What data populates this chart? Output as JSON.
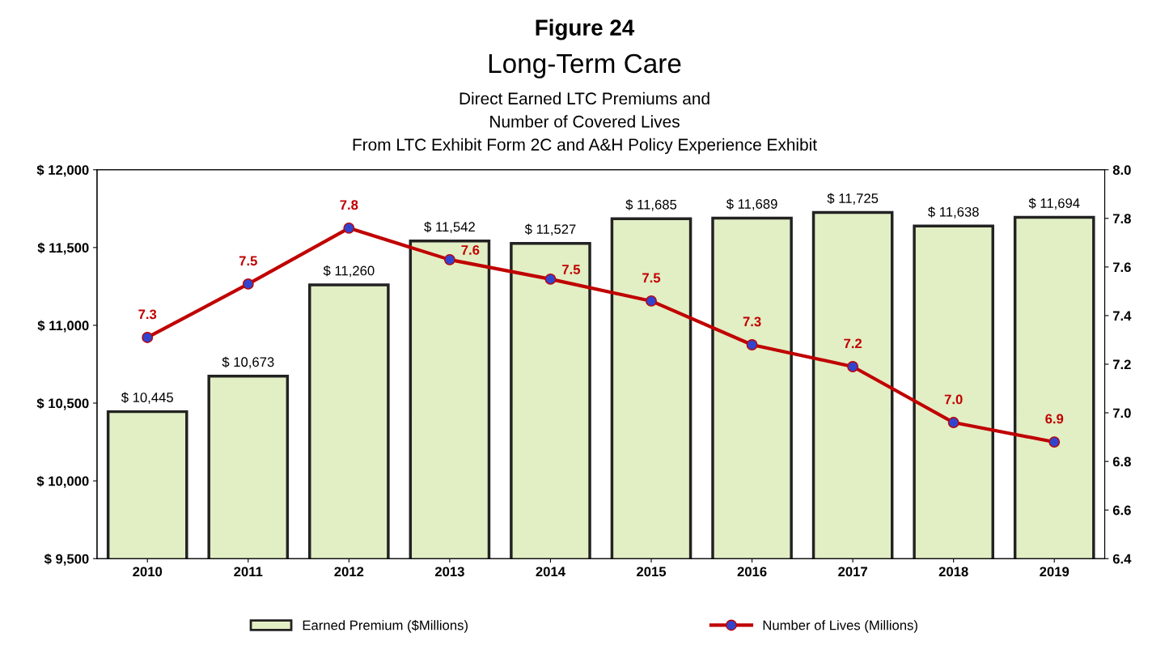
{
  "chart_data": {
    "type": "bar",
    "title": "Figure 24",
    "subtitle": "Long-Term Care\nDirect Earned LTC Premiums and\nNumber of Covered Lives\nFrom LTC Exhibit Form 2C and A&H Policy Experience Exhibit",
    "categories": [
      "2010",
      "2011",
      "2012",
      "2013",
      "2014",
      "2015",
      "2016",
      "2017",
      "2018",
      "2019"
    ],
    "series": [
      {
        "name": "Earned Premium ($Millions)",
        "color": "#e2eec4",
        "values": [
          10445,
          10673,
          11260,
          11542,
          11527,
          11685,
          11689,
          11725,
          11638,
          11694
        ],
        "value_labels": [
          "$ 10,445",
          "$ 10,673",
          "$ 11,260",
          "$ 11,542",
          "$ 11,527",
          "$ 11,685",
          "$ 11,689",
          "$ 11,725",
          "$ 11,638",
          "$ 11,694"
        ]
      },
      {
        "name": "Number of Lives (Millions)",
        "type": "line",
        "axis": "y2",
        "color": "#c00000",
        "values": [
          7.31,
          7.53,
          7.76,
          7.63,
          7.55,
          7.46,
          7.28,
          7.19,
          6.96,
          6.88
        ],
        "value_labels": [
          "7.3",
          "7.5",
          "7.8",
          "7.6",
          "7.5",
          "7.5",
          "7.3",
          "7.2",
          "7.0",
          "6.9"
        ]
      }
    ],
    "ylim": [
      9500,
      12000
    ],
    "yticks": [
      {
        "value": 9500,
        "label": "$ 9,500"
      },
      {
        "value": 10000,
        "label": "$ 10,000"
      },
      {
        "value": 10500,
        "label": "$ 10,500"
      },
      {
        "value": 11000,
        "label": "$ 11,000"
      },
      {
        "value": 11500,
        "label": "$ 11,500"
      },
      {
        "value": 12000,
        "label": "$ 12,000"
      }
    ],
    "y2lim": [
      6.4,
      8.0
    ],
    "y2ticks": [
      6.4,
      6.6,
      6.8,
      {
        "value": 7,
        "label": "7.0"
      },
      7.2,
      7.4,
      7.6,
      7.8,
      {
        "value": 8,
        "label": "8.0"
      }
    ],
    "marker": "circle",
    "line_style": "solid",
    "legend": "bottom",
    "grid": false
  }
}
